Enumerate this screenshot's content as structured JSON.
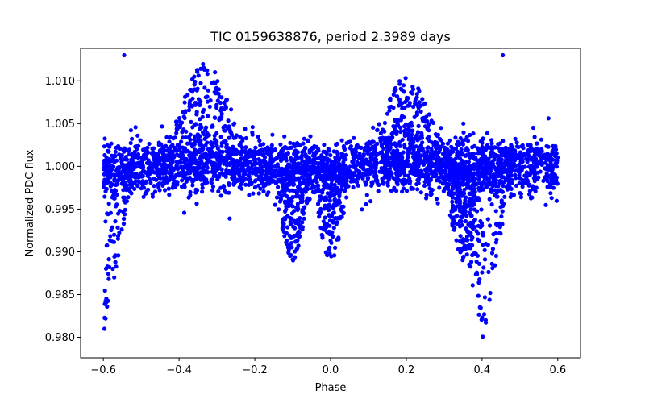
{
  "chart_data": {
    "type": "scatter",
    "title": "TIC 0159638876, period 2.3989 days",
    "xlabel": "Phase",
    "ylabel": "Normalized PDC flux",
    "xlim": [
      -0.66,
      0.66
    ],
    "ylim": [
      0.9776,
      1.0138
    ],
    "grid": false,
    "legend": "none",
    "marker_color": "#0000ff",
    "x_ticks": [
      -0.6,
      -0.4,
      -0.2,
      0.0,
      0.2,
      0.4,
      0.6
    ],
    "x_tick_labels": [
      "−0.6",
      "−0.4",
      "−0.2",
      "0.0",
      "0.2",
      "0.4",
      "0.6"
    ],
    "y_ticks": [
      0.98,
      0.985,
      0.99,
      0.995,
      1.0,
      1.005,
      1.01
    ],
    "y_tick_labels": [
      "0.980",
      "0.985",
      "0.990",
      "0.995",
      "1.000",
      "1.005",
      "1.010"
    ],
    "x_range": [
      -0.6,
      0.6
    ],
    "baseline_flux": 1.0,
    "baseline_scatter": 0.0016,
    "primary_eclipse_phases": [
      -0.6,
      0.4
    ],
    "primary_eclipse_min_flux": 0.979,
    "secondary_eclipse_phases": [
      -0.1,
      0.0,
      0.35
    ],
    "secondary_eclipse_min_flux": 0.989,
    "brightening_bumps": [
      {
        "phase": -0.33,
        "peak_flux": 1.0125
      },
      {
        "phase": 0.2,
        "peak_flux": 1.0105
      }
    ],
    "outliers": [
      {
        "x": -0.545,
        "y": 1.013
      },
      {
        "x": 0.455,
        "y": 1.013
      }
    ]
  }
}
